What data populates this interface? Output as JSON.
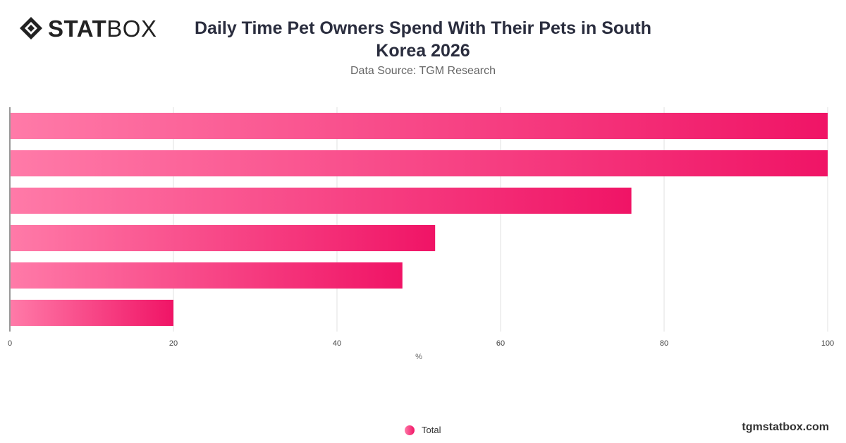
{
  "brand": {
    "logo_bold": "STAT",
    "logo_light": "BOX",
    "footer": "tgmstatbox.com"
  },
  "header": {
    "title": "Daily Time Pet Owners Spend With Their Pets in South Korea 2026",
    "subtitle": "Data Source: TGM Research"
  },
  "legend": {
    "label": "Total",
    "color": "#f01466"
  },
  "chart_data": {
    "type": "bar",
    "orientation": "horizontal",
    "categories": [
      "",
      "",
      "",
      "",
      "",
      ""
    ],
    "series": [
      {
        "name": "Total",
        "values": [
          100,
          100,
          76,
          52,
          48,
          20
        ]
      }
    ],
    "xlabel": "%",
    "ylabel": "",
    "xlim": [
      0,
      100
    ],
    "xticks": [
      "0",
      "20",
      "40",
      "60",
      "80",
      "100"
    ],
    "grid": true,
    "legend_position": "bottom",
    "bar_gradient": [
      "#ff7aa8",
      "#f01466"
    ]
  }
}
